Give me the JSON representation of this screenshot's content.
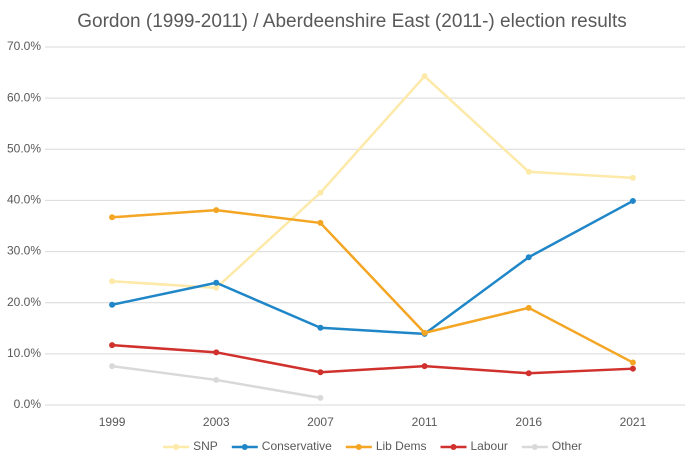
{
  "chart_data": {
    "type": "line",
    "title": "Gordon (1999-2011) / Aberdeenshire East (2011-) election results",
    "categories": [
      "1999",
      "2003",
      "2007",
      "2011",
      "2016",
      "2021"
    ],
    "series": [
      {
        "name": "SNP",
        "color": "#fde9a8",
        "values": [
          24.2,
          22.9,
          41.5,
          64.3,
          45.6,
          44.4
        ]
      },
      {
        "name": "Conservative",
        "color": "#1f86c8",
        "values": [
          19.6,
          23.9,
          15.1,
          13.9,
          28.9,
          39.9
        ]
      },
      {
        "name": "Lib Dems",
        "color": "#f4a523",
        "values": [
          36.7,
          38.1,
          35.6,
          14.1,
          19.0,
          8.3
        ]
      },
      {
        "name": "Labour",
        "color": "#d0312d",
        "values": [
          11.7,
          10.3,
          6.4,
          7.6,
          6.2,
          7.1
        ]
      },
      {
        "name": "Other",
        "color": "#d9d9d9",
        "values": [
          7.6,
          4.9,
          1.4,
          null,
          null,
          null
        ]
      }
    ],
    "ylim": [
      0,
      70
    ],
    "yticks": [
      {
        "value": 0,
        "label": "0.0%"
      },
      {
        "value": 10,
        "label": "10.0%"
      },
      {
        "value": 20,
        "label": "20.0%"
      },
      {
        "value": 30,
        "label": "30.0%"
      },
      {
        "value": 40,
        "label": "40.0%"
      },
      {
        "value": 50,
        "label": "50.0%"
      },
      {
        "value": 60,
        "label": "60.0%"
      },
      {
        "value": 70,
        "label": "70.0%"
      }
    ],
    "grid": true,
    "legend": "bottom"
  }
}
